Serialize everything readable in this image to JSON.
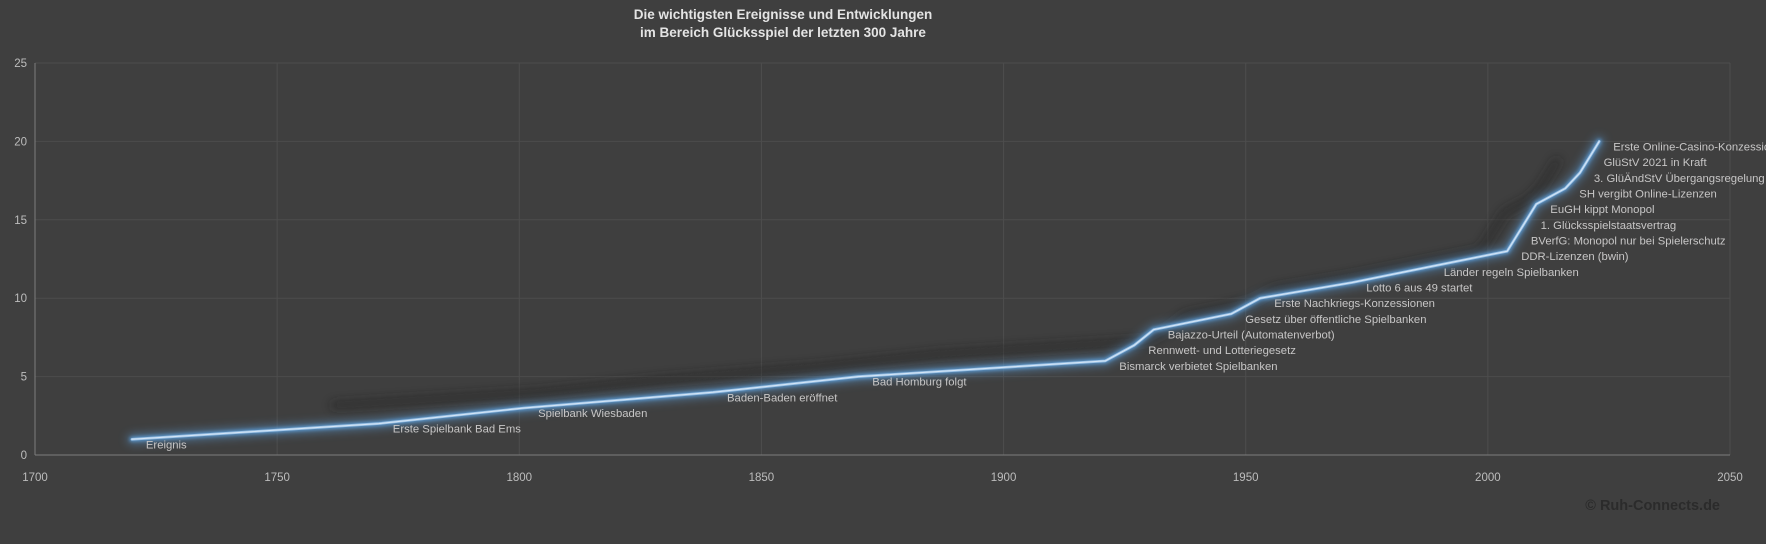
{
  "title": {
    "line1": "Die wichtigsten Ereignisse und Entwicklungen",
    "line2": "im Bereich Glücksspiel der letzten 300 Jahre"
  },
  "copyright": "© Ruh-Connects.de",
  "chart_data": {
    "type": "line",
    "series_name": "Ereignis",
    "title": "Die wichtigsten Ereignisse und Entwicklungen im Bereich Glücksspiel der letzten 300 Jahre",
    "xlabel": "",
    "ylabel": "",
    "legend_position": "none",
    "grid": true,
    "x_axis": {
      "min": 1700,
      "max": 2050,
      "ticks": [
        1700,
        1750,
        1800,
        1850,
        1900,
        1950,
        2000,
        2050
      ]
    },
    "y_axis": {
      "min": 0,
      "max": 25,
      "ticks": [
        0,
        5,
        10,
        15,
        20,
        25
      ]
    },
    "events": [
      {
        "label": "Ereignis",
        "year": 1720,
        "value": 1
      },
      {
        "label": "Erste Spielbank Bad Ems",
        "year": 1771,
        "value": 2
      },
      {
        "label": "Spielbank Wiesbaden",
        "year": 1801,
        "value": 3
      },
      {
        "label": "Baden-Baden eröffnet",
        "year": 1840,
        "value": 4
      },
      {
        "label": "Bad Homburg folgt",
        "year": 1870,
        "value": 5
      },
      {
        "label": "Bismarck verbietet Spielbanken",
        "year": 1921,
        "value": 6
      },
      {
        "label": "Rennwett- und Lotteriegesetz",
        "year": 1927,
        "value": 7
      },
      {
        "label": "Bajazzo-Urteil (Automatenverbot)",
        "year": 1931,
        "value": 8
      },
      {
        "label": "Gesetz über öffentliche Spielbanken",
        "year": 1947,
        "value": 9
      },
      {
        "label": "Erste Nachkriegs-Konzessionen",
        "year": 1953,
        "value": 10
      },
      {
        "label": "Lotto 6 aus 49 startet",
        "year": 1972,
        "value": 11
      },
      {
        "label": "Länder regeln Spielbanken",
        "year": 1988,
        "value": 12
      },
      {
        "label": "DDR-Lizenzen (bwin)",
        "year": 2004,
        "value": 13
      },
      {
        "label": "BVerfG: Monopol nur bei Spielerschutz",
        "year": 2006,
        "value": 14
      },
      {
        "label": "1. Glücksspielstaatsvertrag",
        "year": 2008,
        "value": 15
      },
      {
        "label": "EuGH kippt Monopol",
        "year": 2010,
        "value": 16
      },
      {
        "label": "SH vergibt Online-Lizenzen",
        "year": 2016,
        "value": 17
      },
      {
        "label": "3. GlüÄndStV Übergangsregelung",
        "year": 2019,
        "value": 18
      },
      {
        "label": "GlüStV 2021 in Kraft",
        "year": 2021,
        "value": 19
      },
      {
        "label": "Erste Online-Casino-Konzessionen",
        "year": 2023,
        "value": 20
      }
    ],
    "colors": {
      "background": "#3F3F3F",
      "gridline": "#4D4D4D",
      "axis": "#7D7D7D",
      "tick_label": "#BDBDBD",
      "event_label": "#C7C6C6",
      "title": "#E4E4E4",
      "line_main": "#9DC3E6",
      "line_glow": "#5B9BD5",
      "line_core": "#DCEAF8",
      "line_shadow": "#242424",
      "copyright": "#2B2B2B"
    }
  }
}
